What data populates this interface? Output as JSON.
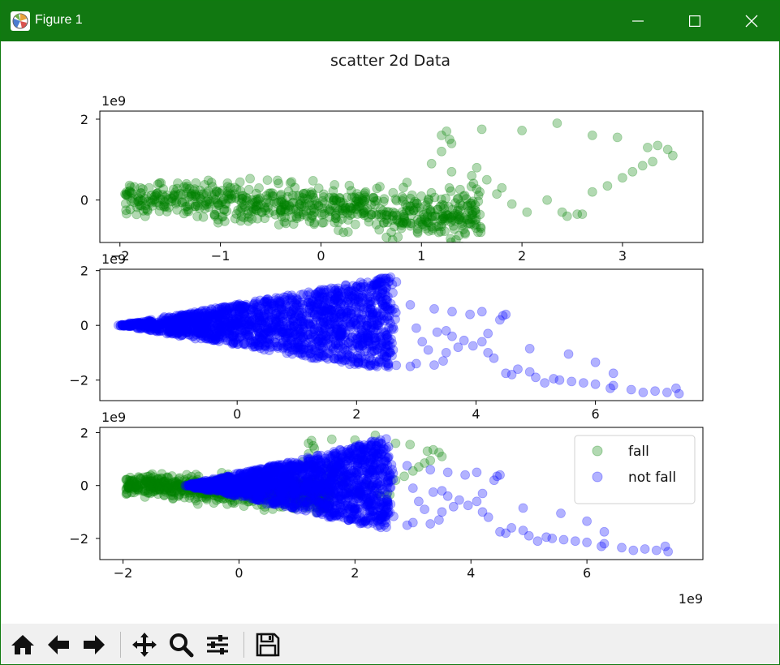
{
  "window": {
    "title": "Figure 1"
  },
  "toolbar": {
    "buttons": [
      "home-icon",
      "back-arrow-icon",
      "forward-arrow-icon",
      "pan-icon",
      "zoom-icon",
      "subplots-icon",
      "save-icon"
    ]
  },
  "colors": {
    "titlebar": "#117811",
    "fall": "#008000",
    "not_fall": "#0000ff"
  },
  "figure": {
    "suptitle": "scatter 2d Data"
  },
  "chart_data": [
    {
      "type": "scatter",
      "xlim": [
        -2.2,
        3.8
      ],
      "ylim": [
        -1.05,
        2.2
      ],
      "xticks": [
        -2,
        -1,
        0,
        1,
        2,
        3
      ],
      "xtick_labels": [
        "−2",
        "−1",
        "0",
        "1",
        "2",
        "3"
      ],
      "yticks": [
        2,
        0
      ],
      "ytick_labels": [
        "2",
        "0"
      ],
      "x_exponent": "",
      "y_exponent": "1e9",
      "series": [
        {
          "color": "#008000",
          "alpha": 0.3,
          "cloud": {
            "x": [
              -1.95,
              1.6
            ],
            "y_center": [
              0.05,
              -0.35
            ],
            "spread": [
              0.55,
              1.0
            ]
          },
          "points": [
            [
              1.2,
              1.6
            ],
            [
              1.25,
              1.7
            ],
            [
              1.28,
              1.5
            ],
            [
              1.6,
              1.75
            ],
            [
              2.0,
              1.72
            ],
            [
              2.35,
              1.9
            ],
            [
              2.7,
              1.6
            ],
            [
              2.95,
              1.55
            ],
            [
              3.25,
              1.3
            ],
            [
              3.35,
              1.35
            ],
            [
              3.45,
              1.25
            ],
            [
              3.5,
              1.1
            ],
            [
              3.3,
              0.95
            ],
            [
              3.0,
              0.55
            ],
            [
              3.1,
              0.7
            ],
            [
              3.2,
              0.85
            ],
            [
              2.7,
              0.2
            ],
            [
              2.85,
              0.35
            ],
            [
              2.45,
              -0.4
            ],
            [
              2.55,
              -0.35
            ],
            [
              2.6,
              -0.35
            ],
            [
              2.25,
              0.0
            ],
            [
              2.4,
              -0.3
            ],
            [
              2.05,
              -0.3
            ],
            [
              1.9,
              -0.1
            ],
            [
              1.8,
              0.3
            ],
            [
              1.75,
              0.15
            ],
            [
              1.65,
              0.5
            ],
            [
              1.55,
              0.8
            ],
            [
              1.5,
              0.6
            ],
            [
              1.3,
              0.7
            ],
            [
              1.3,
              1.4
            ],
            [
              1.2,
              1.2
            ],
            [
              1.1,
              0.9
            ],
            [
              0.8,
              -0.7
            ],
            [
              0.7,
              -0.8
            ]
          ]
        }
      ]
    },
    {
      "type": "scatter",
      "xlim": [
        -2.3,
        7.8
      ],
      "ylim": [
        -2.75,
        2.05
      ],
      "xticks": [
        0,
        2,
        4,
        6
      ],
      "xtick_labels": [
        "0",
        "2",
        "4",
        "6"
      ],
      "yticks": [
        2,
        0,
        -2
      ],
      "ytick_labels": [
        "2",
        "0",
        "−2"
      ],
      "x_exponent": "",
      "y_exponent": "1e9",
      "series": [
        {
          "color": "#0000ff",
          "alpha": 0.3,
          "cloud": {
            "apex": [
              -1.95,
              0.0
            ],
            "tip_upper": [
              2.6,
              1.8
            ],
            "tip_lower": [
              2.2,
              -1.7
            ]
          },
          "points": [
            [
              7.4,
              -2.5
            ],
            [
              7.35,
              -2.3
            ],
            [
              7.2,
              -2.45
            ],
            [
              7.0,
              -2.4
            ],
            [
              6.8,
              -2.45
            ],
            [
              6.6,
              -2.35
            ],
            [
              6.3,
              -2.2
            ],
            [
              6.25,
              -2.3
            ],
            [
              6.0,
              -2.15
            ],
            [
              5.8,
              -2.1
            ],
            [
              5.6,
              -2.05
            ],
            [
              5.4,
              -2.0
            ],
            [
              5.3,
              -1.95
            ],
            [
              5.15,
              -2.1
            ],
            [
              5.0,
              -1.9
            ],
            [
              4.9,
              -1.7
            ],
            [
              4.7,
              -1.6
            ],
            [
              4.5,
              -1.75
            ],
            [
              6.0,
              -1.35
            ],
            [
              6.3,
              -1.75
            ],
            [
              5.55,
              -1.05
            ],
            [
              4.9,
              -0.85
            ],
            [
              4.5,
              0.4
            ],
            [
              4.4,
              0.2
            ],
            [
              4.2,
              -0.3
            ],
            [
              4.1,
              -0.6
            ],
            [
              4.3,
              -1.2
            ],
            [
              4.6,
              -1.8
            ],
            [
              4.2,
              -1.0
            ],
            [
              3.95,
              -0.75
            ],
            [
              3.8,
              -0.55
            ],
            [
              3.6,
              -0.4
            ],
            [
              3.5,
              -1.0
            ],
            [
              3.45,
              -1.3
            ],
            [
              3.3,
              -1.45
            ],
            [
              3.3,
              0.6
            ],
            [
              3.6,
              0.5
            ],
            [
              3.9,
              0.4
            ],
            [
              4.1,
              0.5
            ],
            [
              4.45,
              0.35
            ],
            [
              3.0,
              -0.1
            ],
            [
              3.1,
              -0.6
            ],
            [
              3.2,
              -0.9
            ],
            [
              3.0,
              -1.4
            ],
            [
              2.9,
              -1.5
            ],
            [
              2.9,
              0.75
            ],
            [
              3.5,
              -0.2
            ],
            [
              3.7,
              -0.8
            ],
            [
              3.35,
              -0.25
            ]
          ]
        }
      ]
    },
    {
      "type": "scatter",
      "xlim": [
        -2.4,
        8.0
      ],
      "ylim": [
        -2.8,
        2.2
      ],
      "xticks": [
        -2,
        0,
        2,
        4,
        6
      ],
      "xtick_labels": [
        "−2",
        "0",
        "2",
        "4",
        "6"
      ],
      "yticks": [
        2,
        0,
        -2
      ],
      "ytick_labels": [
        "2",
        "0",
        "−2"
      ],
      "x_exponent": "1e9",
      "y_exponent": "1e9",
      "legend": {
        "placement": "upper right"
      },
      "series": [
        {
          "name": "fall",
          "color": "#008000",
          "alpha": 0.3,
          "cloud": {
            "x": [
              -1.95,
              1.6
            ],
            "y_center": [
              0.05,
              -0.35
            ],
            "spread": [
              0.55,
              1.0
            ]
          },
          "points": [
            [
              1.2,
              1.6
            ],
            [
              1.25,
              1.7
            ],
            [
              1.28,
              1.5
            ],
            [
              1.6,
              1.75
            ],
            [
              2.0,
              1.72
            ],
            [
              2.35,
              1.9
            ],
            [
              2.7,
              1.6
            ],
            [
              2.95,
              1.55
            ],
            [
              3.25,
              1.3
            ],
            [
              3.35,
              1.35
            ],
            [
              3.45,
              1.25
            ],
            [
              3.5,
              1.1
            ],
            [
              3.3,
              0.95
            ],
            [
              3.0,
              0.55
            ],
            [
              3.1,
              0.7
            ],
            [
              3.2,
              0.85
            ],
            [
              2.7,
              0.2
            ],
            [
              2.85,
              0.35
            ],
            [
              2.45,
              -0.4
            ],
            [
              2.55,
              -0.35
            ],
            [
              2.6,
              -0.35
            ],
            [
              2.25,
              0.0
            ],
            [
              2.4,
              -0.3
            ],
            [
              2.05,
              -0.3
            ],
            [
              1.9,
              -0.1
            ],
            [
              1.8,
              0.3
            ],
            [
              1.75,
              0.15
            ],
            [
              1.65,
              0.5
            ],
            [
              1.55,
              0.8
            ],
            [
              1.5,
              0.6
            ],
            [
              1.3,
              0.7
            ],
            [
              1.3,
              1.4
            ],
            [
              1.2,
              1.2
            ],
            [
              1.1,
              0.9
            ],
            [
              0.8,
              -0.7
            ],
            [
              0.7,
              -0.8
            ]
          ]
        },
        {
          "name": "not fall",
          "color": "#0000ff",
          "alpha": 0.3,
          "cloud": {
            "apex": [
              -0.9,
              0.0
            ],
            "tip_upper": [
              2.6,
              1.8
            ],
            "tip_lower": [
              2.2,
              -1.7
            ]
          },
          "points": [
            [
              7.4,
              -2.5
            ],
            [
              7.35,
              -2.3
            ],
            [
              7.2,
              -2.45
            ],
            [
              7.0,
              -2.4
            ],
            [
              6.8,
              -2.45
            ],
            [
              6.6,
              -2.35
            ],
            [
              6.3,
              -2.2
            ],
            [
              6.25,
              -2.3
            ],
            [
              6.0,
              -2.15
            ],
            [
              5.8,
              -2.1
            ],
            [
              5.6,
              -2.05
            ],
            [
              5.4,
              -2.0
            ],
            [
              5.3,
              -1.95
            ],
            [
              5.15,
              -2.1
            ],
            [
              5.0,
              -1.9
            ],
            [
              4.9,
              -1.7
            ],
            [
              4.7,
              -1.6
            ],
            [
              4.5,
              -1.75
            ],
            [
              6.0,
              -1.35
            ],
            [
              6.3,
              -1.75
            ],
            [
              5.55,
              -1.05
            ],
            [
              4.9,
              -0.85
            ],
            [
              4.5,
              0.4
            ],
            [
              4.4,
              0.2
            ],
            [
              4.2,
              -0.3
            ],
            [
              4.1,
              -0.6
            ],
            [
              4.3,
              -1.2
            ],
            [
              4.6,
              -1.8
            ],
            [
              4.2,
              -1.0
            ],
            [
              3.95,
              -0.75
            ],
            [
              3.8,
              -0.55
            ],
            [
              3.6,
              -0.4
            ],
            [
              3.5,
              -1.0
            ],
            [
              3.45,
              -1.3
            ],
            [
              3.3,
              -1.45
            ],
            [
              3.3,
              0.6
            ],
            [
              3.6,
              0.5
            ],
            [
              3.9,
              0.4
            ],
            [
              4.1,
              0.5
            ],
            [
              4.45,
              0.35
            ],
            [
              3.0,
              -0.1
            ],
            [
              3.1,
              -0.6
            ],
            [
              3.2,
              -0.9
            ],
            [
              3.0,
              -1.4
            ],
            [
              2.9,
              -1.5
            ],
            [
              2.9,
              0.75
            ],
            [
              3.5,
              -0.2
            ],
            [
              3.7,
              -0.8
            ],
            [
              3.35,
              -0.25
            ]
          ]
        }
      ]
    }
  ]
}
